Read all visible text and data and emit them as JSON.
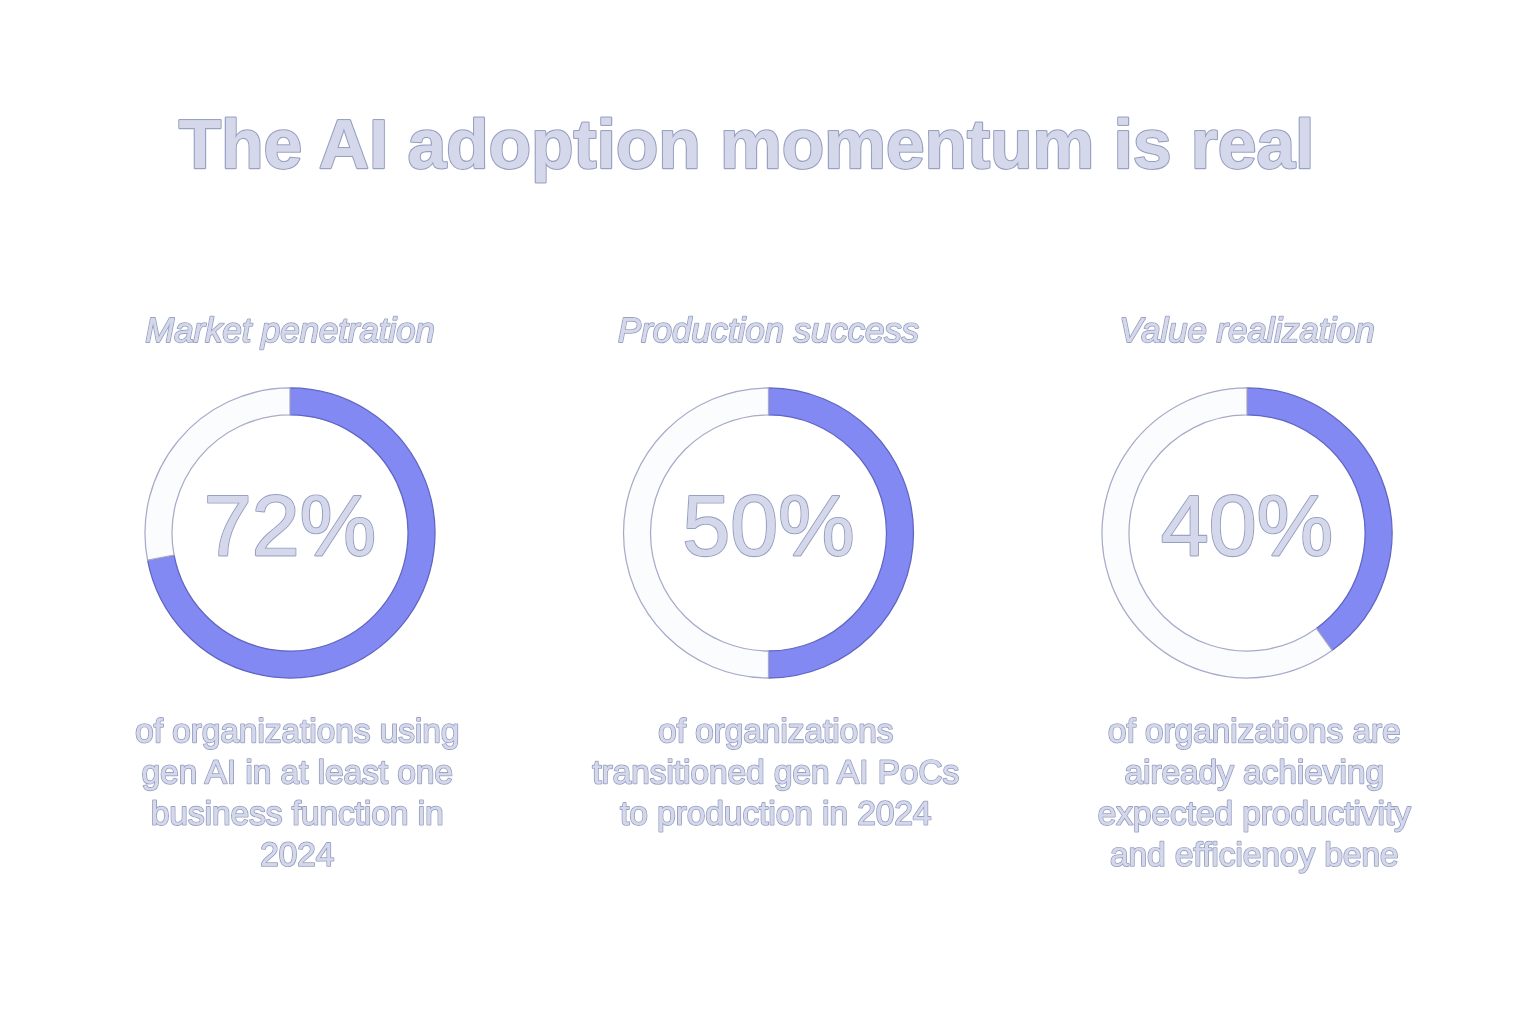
{
  "chart_data": [
    {
      "type": "other",
      "title": "The AI adoption momentum is real"
    },
    {
      "type": "donut",
      "title": "Market penetration",
      "categories": [
        null,
        null
      ],
      "values": [
        72,
        28
      ],
      "colors": [
        "#8389f2",
        "#fbfcfe"
      ],
      "value_labels": [
        "72%",
        null
      ],
      "annotations": [
        "of organizations using\ngen AI in at least one\nbusiness function in\n2024"
      ]
    },
    {
      "type": "donut",
      "title": "Production success",
      "categories": [
        null,
        null
      ],
      "values": [
        50,
        50
      ],
      "colors": [
        "#8389f2",
        "#fbfcfe"
      ],
      "value_labels": [
        "50%",
        null
      ],
      "annotations": [
        "of organizations\ntransitioned gen AI PoCs\nto production in 2024"
      ]
    },
    {
      "type": "donut",
      "title": "Value realization",
      "categories": [
        null,
        null
      ],
      "values": [
        40,
        60
      ],
      "colors": [
        "#8389f2",
        "#fbfcfe"
      ],
      "value_labels": [
        "40%",
        null
      ],
      "annotations": [
        "of organizations are\naiready achieving\nexpected productivity\nand efficienoy bene"
      ]
    }
  ]
}
